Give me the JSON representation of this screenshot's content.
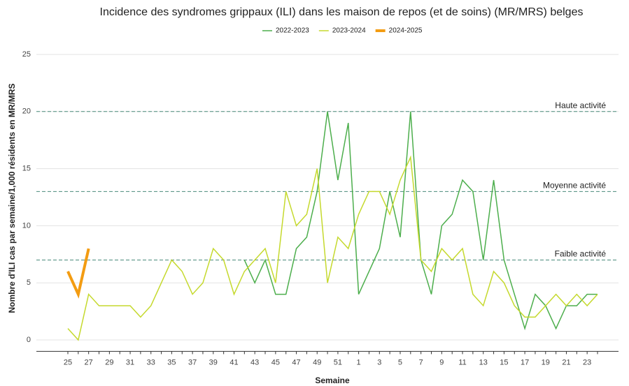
{
  "chart_data": {
    "type": "line",
    "title": "Incidence des syndromes grippaux (ILI) dans les maison de repos (et de soins) (MR/MRS) belges",
    "x_label": "Semaine",
    "y_label": "Nombre d'ILI cas par semaine/1,000 résidents en MR/MRS",
    "categories": [
      "25",
      null,
      "27",
      null,
      "29",
      null,
      "31",
      null,
      "33",
      null,
      "35",
      null,
      "37",
      null,
      "39",
      null,
      "41",
      null,
      "43",
      null,
      "45",
      null,
      "47",
      null,
      "49",
      null,
      "51",
      null,
      "1",
      null,
      "3",
      null,
      "5",
      null,
      "7",
      null,
      "9",
      null,
      "11",
      null,
      "13",
      null,
      "15",
      null,
      "17",
      null,
      "19",
      null,
      "21",
      null,
      "23",
      null
    ],
    "series": [
      {
        "name": "2022-2023",
        "color": "#4cae4c",
        "width": 1.5,
        "values": [
          null,
          null,
          null,
          null,
          null,
          null,
          null,
          null,
          null,
          null,
          null,
          null,
          null,
          null,
          null,
          null,
          null,
          7,
          5,
          7,
          4,
          4,
          8,
          9,
          13,
          20,
          14,
          19,
          4,
          6,
          8,
          13,
          9,
          20,
          7,
          4,
          10,
          11,
          14,
          13,
          7,
          14,
          7,
          4,
          1,
          4,
          3,
          1,
          3,
          3,
          4,
          4
        ]
      },
      {
        "name": "2023-2024",
        "color": "#c5d92d",
        "width": 1.5,
        "values": [
          1,
          0,
          4,
          3,
          3,
          3,
          3,
          2,
          3,
          5,
          7,
          6,
          4,
          5,
          8,
          7,
          4,
          6,
          7,
          8,
          5,
          13,
          10,
          11,
          15,
          5,
          9,
          8,
          11,
          13,
          13,
          11,
          14,
          16,
          7,
          6,
          8,
          7,
          8,
          4,
          3,
          6,
          5,
          3,
          2,
          2,
          3,
          4,
          3,
          4,
          3,
          4
        ]
      },
      {
        "name": "2024-2025",
        "color": "#f39c12",
        "width": 4,
        "values": [
          6,
          4,
          8,
          null,
          null,
          null,
          null,
          null,
          null,
          null,
          null,
          null,
          null,
          null,
          null,
          null,
          null,
          null,
          null,
          null,
          null,
          null,
          null,
          null,
          null,
          null,
          null,
          null,
          null,
          null,
          null,
          null,
          null,
          null,
          null,
          null,
          null,
          null,
          null,
          null,
          null,
          null,
          null,
          null,
          null,
          null,
          null,
          null,
          null,
          null,
          null,
          null
        ]
      }
    ],
    "thresholds": [
      {
        "value": 20,
        "label": "Haute activité"
      },
      {
        "value": 13,
        "label": "Moyenne activité"
      },
      {
        "value": 7,
        "label": "Faible activité"
      }
    ],
    "ylim": [
      -1,
      26
    ],
    "yticks": [
      0,
      5,
      10,
      15,
      20,
      25
    ],
    "grid": true
  }
}
